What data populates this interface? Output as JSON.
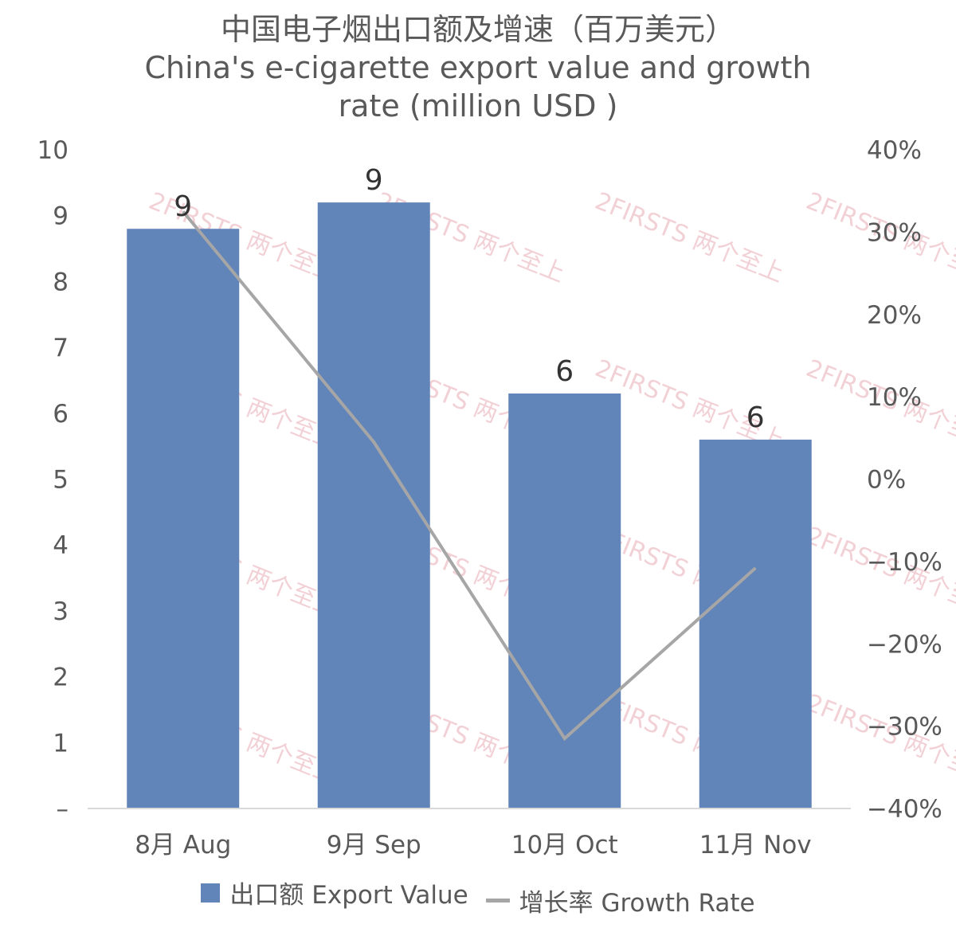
{
  "chart_data": {
    "type": "bar",
    "title": "中国电子烟出口额及增速（百万美元）",
    "subtitle_lines": [
      "China's e-cigarette export value and growth",
      "rate (million USD )"
    ],
    "categories": [
      "8月 Aug",
      "9月 Sep",
      "10月 Oct",
      "11月 Nov"
    ],
    "series": [
      {
        "name": "出口额 Export Value",
        "kind": "bar",
        "axis": "left",
        "values": [
          8.8,
          9.2,
          6.3,
          5.6
        ],
        "labels": [
          "9",
          "9",
          "6",
          "6"
        ],
        "color": "#6184b9"
      },
      {
        "name": "增长率 Growth Rate",
        "kind": "line",
        "axis": "right",
        "values": [
          32.5,
          4.5,
          -31.5,
          -10.8
        ],
        "color": "#a6a6a6"
      }
    ],
    "left_axis": {
      "ylim": [
        0,
        10
      ],
      "tick_labels": [
        "–",
        "1",
        "2",
        "3",
        "4",
        "5",
        "6",
        "7",
        "8",
        "9",
        "10"
      ]
    },
    "right_axis": {
      "ylim": [
        -40,
        40
      ],
      "tick_labels": [
        "−40%",
        "−30%",
        "−20%",
        "−10%",
        "0%",
        "10%",
        "20%",
        "30%",
        "40%"
      ]
    },
    "grid": false,
    "legend_position": "bottom",
    "watermark": "2FIRSTS 两个至上"
  }
}
